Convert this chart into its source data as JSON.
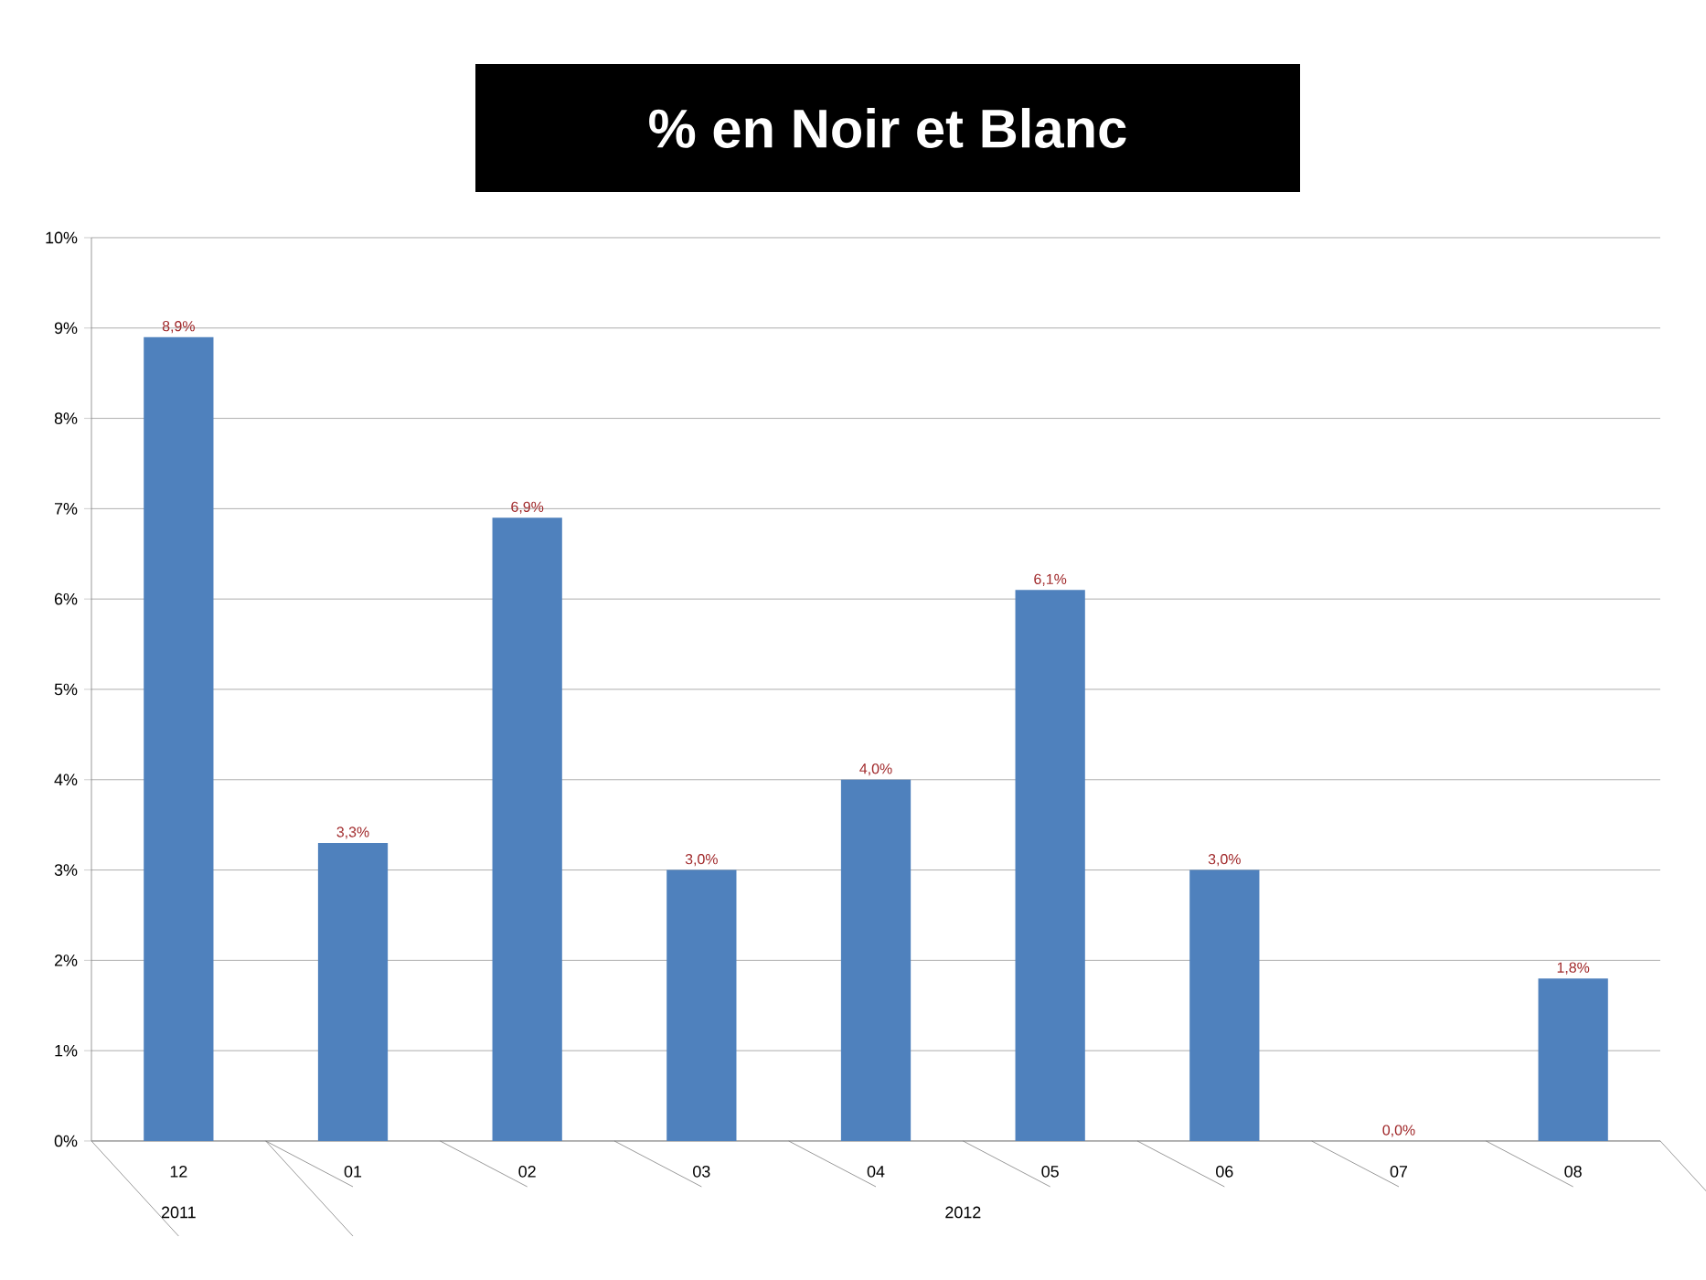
{
  "chart_data": {
    "type": "bar",
    "title": "% en Noir et Blanc",
    "categories": [
      "12",
      "01",
      "02",
      "03",
      "04",
      "05",
      "06",
      "07",
      "08"
    ],
    "values": [
      8.9,
      3.3,
      6.9,
      3.0,
      4.0,
      6.1,
      3.0,
      0.0,
      1.8
    ],
    "value_labels": [
      "8,9%",
      "3,3%",
      "6,9%",
      "3,0%",
      "4,0%",
      "6,1%",
      "3,0%",
      "0,0%",
      "1,8%"
    ],
    "color": "#4f81bd",
    "ylim": [
      0,
      10
    ],
    "yticks": [
      {
        "value": 0,
        "label": "0%"
      },
      {
        "value": 1,
        "label": "1%"
      },
      {
        "value": 2,
        "label": "2%"
      },
      {
        "value": 3,
        "label": "3%"
      },
      {
        "value": 4,
        "label": "4%"
      },
      {
        "value": 5,
        "label": "5%"
      },
      {
        "value": 6,
        "label": "6%"
      },
      {
        "value": 7,
        "label": "7%"
      },
      {
        "value": 8,
        "label": "8%"
      },
      {
        "value": 9,
        "label": "9%"
      },
      {
        "value": 10,
        "label": "10%"
      }
    ],
    "grid": "y",
    "annotations": [
      "2011",
      "2012"
    ]
  }
}
